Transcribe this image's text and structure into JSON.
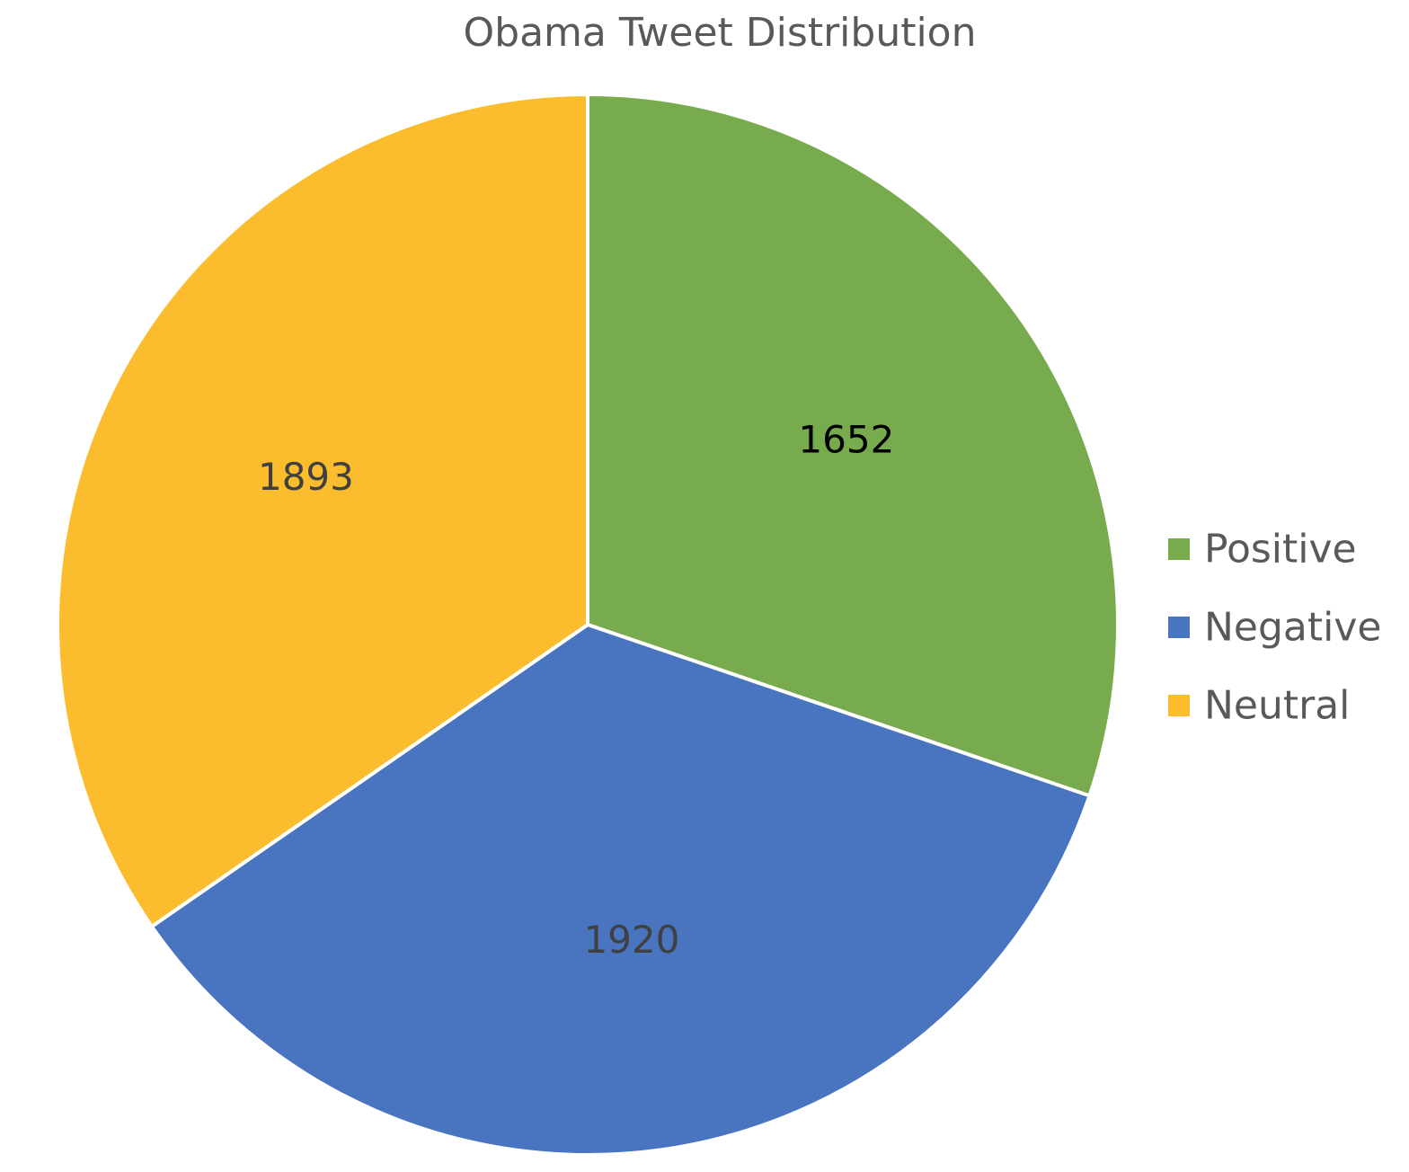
{
  "chart_data": {
    "type": "pie",
    "title": "Obama Tweet Distribution",
    "categories": [
      "Positive",
      "Negative",
      "Neutral"
    ],
    "values": [
      1652,
      1920,
      1893
    ],
    "colors": [
      "#78AB4E",
      "#4874C0",
      "#FBBD2E"
    ],
    "label_colors": [
      "#000000",
      "#404040",
      "#404040"
    ],
    "data_labels": [
      "1652",
      "1920",
      "1893"
    ],
    "start_angle": "12 o'clock",
    "direction": "clockwise",
    "legend": {
      "position": "right",
      "entries": [
        "Positive",
        "Negative",
        "Neutral"
      ]
    }
  }
}
